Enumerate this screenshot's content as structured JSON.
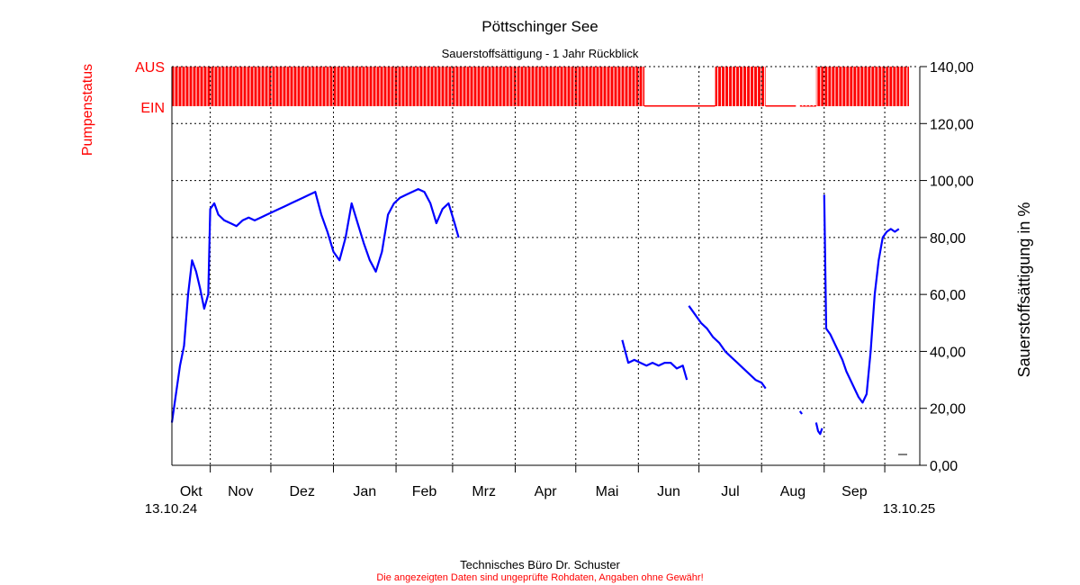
{
  "chart_data": {
    "type": "line",
    "title": "Pöttschinger See",
    "subtitle": "Sauerstoffsättigung - 1 Jahr Rückblick",
    "ylabel": "Sauerstoffsättigung in %",
    "ylabel_left": "Pumpenstatus",
    "pump_labels": {
      "off": "AUS",
      "on": "EIN"
    },
    "ylim": [
      0,
      140
    ],
    "yticks": [
      {
        "value": 0,
        "label": "0,00"
      },
      {
        "value": 20,
        "label": "20,00"
      },
      {
        "value": 40,
        "label": "40,00"
      },
      {
        "value": 60,
        "label": "60,00"
      },
      {
        "value": 80,
        "label": "80,00"
      },
      {
        "value": 100,
        "label": "100,00"
      },
      {
        "value": 120,
        "label": "120,00"
      },
      {
        "value": 140,
        "label": "140,00"
      }
    ],
    "xlim": [
      "2024-10-13",
      "2025-10-13"
    ],
    "x_start_label": "13.10.24",
    "x_end_label": "13.10.25",
    "months": [
      {
        "label": "Okt",
        "start": "2024-10-01"
      },
      {
        "label": "Nov",
        "start": "2024-11-01"
      },
      {
        "label": "Dez",
        "start": "2024-12-01"
      },
      {
        "label": "Jan",
        "start": "2025-01-01"
      },
      {
        "label": "Feb",
        "start": "2025-02-01"
      },
      {
        "label": "Mrz",
        "start": "2025-03-01"
      },
      {
        "label": "Apr",
        "start": "2025-04-01"
      },
      {
        "label": "Mai",
        "start": "2025-05-01"
      },
      {
        "label": "Jun",
        "start": "2025-06-01"
      },
      {
        "label": "Jul",
        "start": "2025-07-01"
      },
      {
        "label": "Aug",
        "start": "2025-08-01"
      },
      {
        "label": "Sep",
        "start": "2025-09-01"
      },
      {
        "label": "",
        "start": "2025-10-01"
      }
    ],
    "series": [
      {
        "color": "#0000ff",
        "segments": [
          [
            [
              "2024-10-13",
              15
            ],
            [
              "2024-10-15",
              25
            ],
            [
              "2024-10-17",
              35
            ],
            [
              "2024-10-19",
              42
            ],
            [
              "2024-10-21",
              60
            ],
            [
              "2024-10-23",
              72
            ],
            [
              "2024-10-25",
              68
            ],
            [
              "2024-10-27",
              62
            ],
            [
              "2024-10-29",
              55
            ],
            [
              "2024-10-31",
              60
            ],
            [
              "2024-11-01",
              90
            ],
            [
              "2024-11-03",
              92
            ],
            [
              "2024-11-05",
              88
            ],
            [
              "2024-11-08",
              86
            ],
            [
              "2024-11-11",
              85
            ],
            [
              "2024-11-14",
              84
            ],
            [
              "2024-11-17",
              86
            ],
            [
              "2024-11-20",
              87
            ],
            [
              "2024-11-23",
              86
            ],
            [
              "2024-11-26",
              87
            ],
            [
              "2024-11-29",
              88
            ],
            [
              "2024-12-02",
              89
            ],
            [
              "2024-12-05",
              90
            ],
            [
              "2024-12-08",
              91
            ],
            [
              "2024-12-11",
              92
            ],
            [
              "2024-12-14",
              93
            ],
            [
              "2024-12-17",
              94
            ],
            [
              "2024-12-20",
              95
            ],
            [
              "2024-12-23",
              96
            ],
            [
              "2024-12-26",
              88
            ],
            [
              "2024-12-29",
              82
            ],
            [
              "2025-01-01",
              75
            ],
            [
              "2025-01-04",
              72
            ],
            [
              "2025-01-07",
              80
            ],
            [
              "2025-01-10",
              92
            ],
            [
              "2025-01-13",
              85
            ],
            [
              "2025-01-16",
              78
            ],
            [
              "2025-01-19",
              72
            ],
            [
              "2025-01-22",
              68
            ],
            [
              "2025-01-25",
              75
            ],
            [
              "2025-01-28",
              88
            ],
            [
              "2025-01-31",
              92
            ],
            [
              "2025-02-03",
              94
            ],
            [
              "2025-02-06",
              95
            ],
            [
              "2025-02-09",
              96
            ],
            [
              "2025-02-12",
              97
            ],
            [
              "2025-02-15",
              96
            ],
            [
              "2025-02-18",
              92
            ],
            [
              "2025-02-21",
              85
            ],
            [
              "2025-02-24",
              90
            ],
            [
              "2025-02-27",
              92
            ],
            [
              "2025-03-02",
              85
            ],
            [
              "2025-03-04",
              80
            ]
          ],
          [
            [
              "2025-05-24",
              44
            ],
            [
              "2025-05-27",
              36
            ],
            [
              "2025-05-30",
              37
            ],
            [
              "2025-06-02",
              36
            ],
            [
              "2025-06-05",
              35
            ],
            [
              "2025-06-08",
              36
            ],
            [
              "2025-06-11",
              35
            ],
            [
              "2025-06-14",
              36
            ],
            [
              "2025-06-17",
              36
            ],
            [
              "2025-06-20",
              34
            ],
            [
              "2025-06-23",
              35
            ],
            [
              "2025-06-25",
              30
            ]
          ],
          [
            [
              "2025-06-26",
              56
            ],
            [
              "2025-06-29",
              53
            ],
            [
              "2025-07-02",
              50
            ],
            [
              "2025-07-05",
              48
            ],
            [
              "2025-07-08",
              45
            ],
            [
              "2025-07-11",
              43
            ],
            [
              "2025-07-14",
              40
            ],
            [
              "2025-07-17",
              38
            ],
            [
              "2025-07-20",
              36
            ],
            [
              "2025-07-23",
              34
            ],
            [
              "2025-07-26",
              32
            ],
            [
              "2025-07-29",
              30
            ],
            [
              "2025-08-01",
              29
            ],
            [
              "2025-08-03",
              27
            ]
          ],
          [
            [
              "2025-08-20",
              19
            ],
            [
              "2025-08-21",
              18
            ]
          ],
          [
            [
              "2025-08-28",
              15
            ],
            [
              "2025-08-29",
              12
            ],
            [
              "2025-08-30",
              11
            ],
            [
              "2025-08-31",
              13
            ]
          ],
          [
            [
              "2025-09-01",
              95
            ],
            [
              "2025-09-02",
              48
            ],
            [
              "2025-09-04",
              46
            ],
            [
              "2025-09-06",
              43
            ],
            [
              "2025-09-08",
              40
            ],
            [
              "2025-09-10",
              37
            ],
            [
              "2025-09-12",
              33
            ],
            [
              "2025-09-14",
              30
            ],
            [
              "2025-09-16",
              27
            ],
            [
              "2025-09-18",
              24
            ],
            [
              "2025-09-20",
              22
            ],
            [
              "2025-09-22",
              25
            ],
            [
              "2025-09-24",
              40
            ],
            [
              "2025-09-26",
              60
            ],
            [
              "2025-09-28",
              72
            ],
            [
              "2025-09-30",
              80
            ],
            [
              "2025-10-02",
              82
            ],
            [
              "2025-10-04",
              83
            ],
            [
              "2025-10-06",
              82
            ],
            [
              "2025-10-08",
              83
            ]
          ]
        ]
      }
    ],
    "pump_status": {
      "color": "#ff0000",
      "off_periods": [
        [
          "2025-06-04",
          "2025-07-09"
        ],
        [
          "2025-08-03",
          "2025-08-28"
        ]
      ],
      "gaps": [
        [
          "2025-08-18",
          "2025-08-20"
        ]
      ]
    },
    "grid": true
  },
  "footer": {
    "company": "Technisches Büro Dr. Schuster",
    "disclaimer": "Die angezeigten Daten sind ungeprüfte Rohdaten, Angaben ohne Gewähr!"
  }
}
